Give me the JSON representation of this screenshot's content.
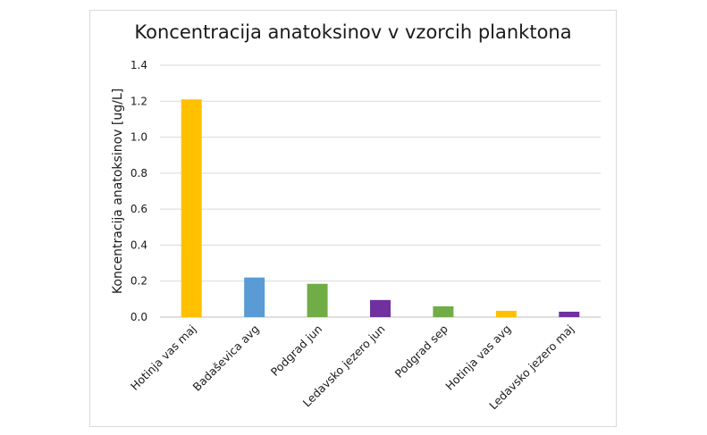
{
  "chart_data": {
    "type": "bar",
    "title": "Koncentracija anatoksinov v vzorcih planktona",
    "xlabel": "",
    "ylabel": "Koncentracija anatoksinov [ug/L]",
    "ylim": [
      0,
      1.4
    ],
    "yticks": [
      "0.0",
      "0.2",
      "0.4",
      "0.6",
      "0.8",
      "1.0",
      "1.2",
      "1.4"
    ],
    "grid": true,
    "legend": "none",
    "categories": [
      "Hotinja vas maj",
      "Badaševica avg",
      "Podgrad jun",
      "Ledavsko jezero jun",
      "Podgrad sep",
      "Hotinja vas avg",
      "Ledavsko jezero maj"
    ],
    "values": [
      1.21,
      0.22,
      0.185,
      0.095,
      0.06,
      0.035,
      0.03
    ],
    "colors": [
      "#FFC000",
      "#5B9BD5",
      "#70AD47",
      "#7030A0",
      "#70AD47",
      "#FFC000",
      "#7030A0"
    ]
  }
}
